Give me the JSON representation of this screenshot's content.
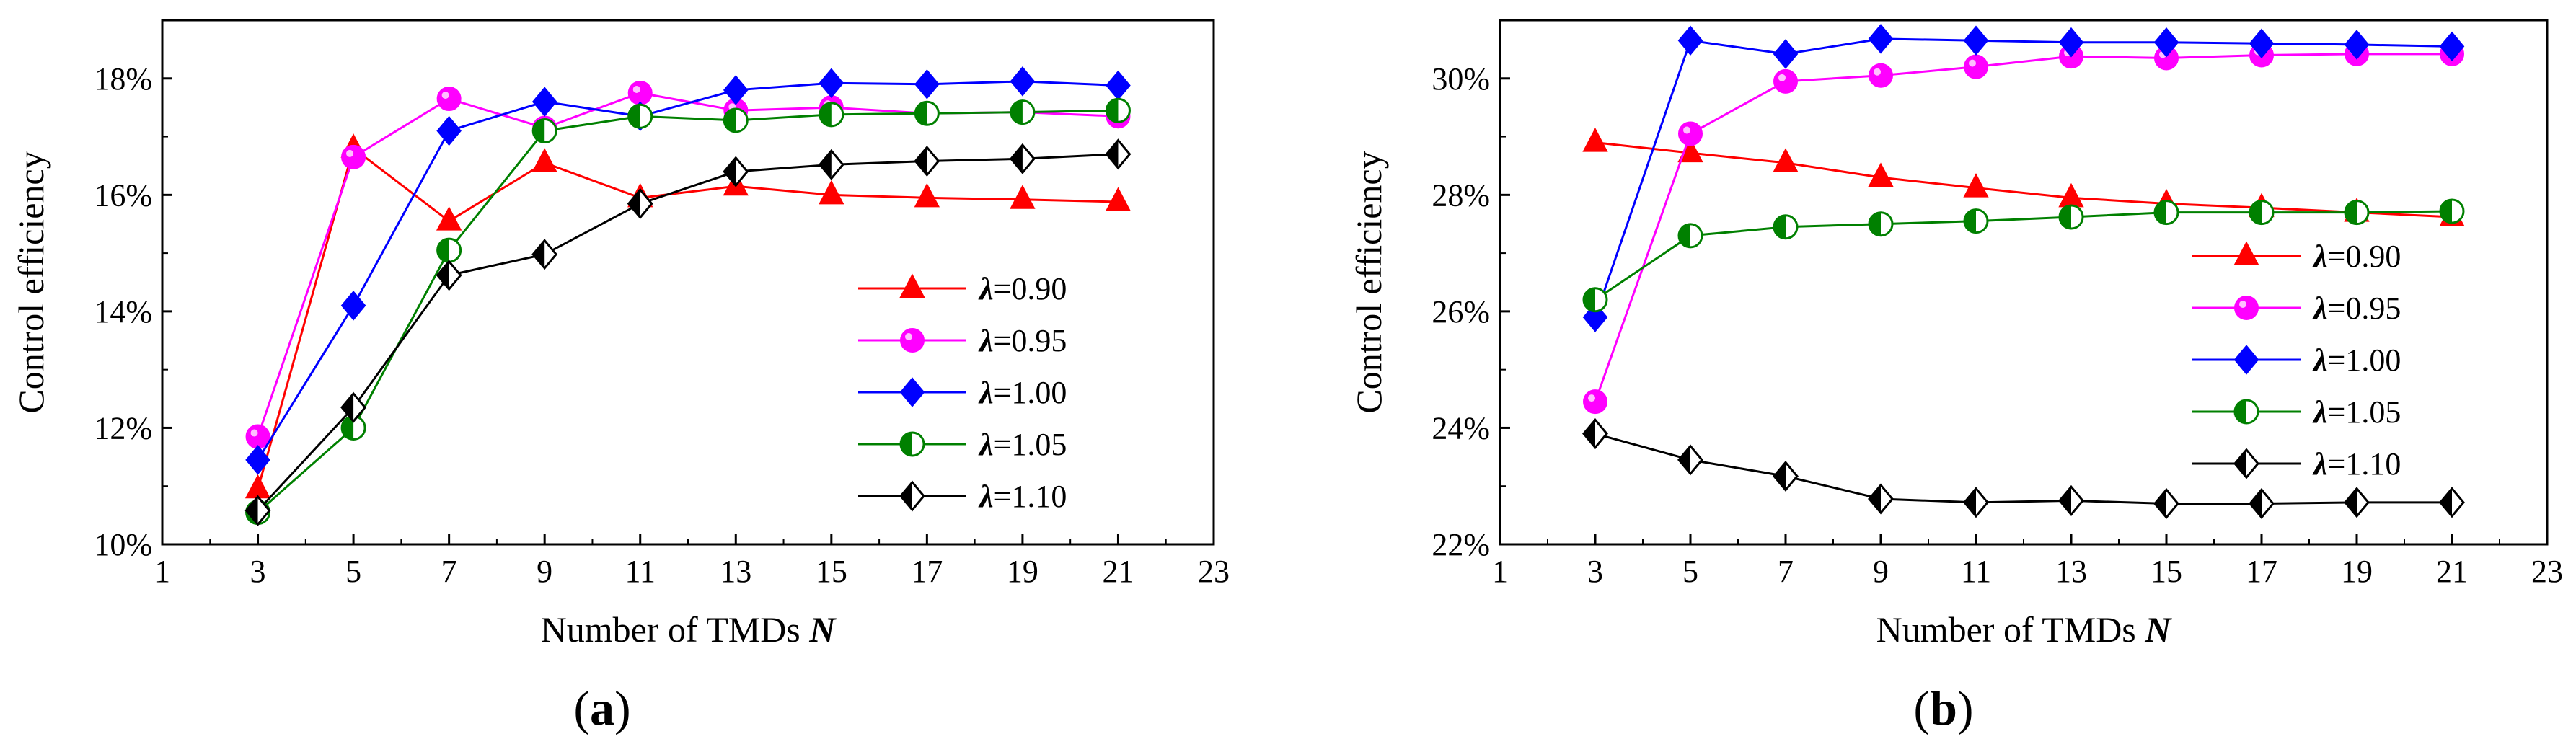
{
  "chart_data": [
    {
      "type": "line",
      "panel_label": "(a)",
      "panel_letter": "a",
      "xlabel": "Number of TMDs ",
      "xlabel_var": "N",
      "ylabel": "Control efficiency",
      "xlim": [
        1,
        23
      ],
      "ylim": [
        10,
        19
      ],
      "xticks": [
        1,
        3,
        5,
        7,
        9,
        11,
        13,
        15,
        17,
        19,
        21,
        23
      ],
      "yticks": [
        10,
        12,
        14,
        16,
        18
      ],
      "y_tick_suffix": "%",
      "legend_position": "lower-right",
      "x": [
        3,
        5,
        7,
        9,
        11,
        13,
        15,
        17,
        19,
        21
      ],
      "series": [
        {
          "name": "λ=0.90",
          "symbol": "λ",
          "value_text": "=0.90",
          "color": "#ff0000",
          "marker": "triangle",
          "values": [
            10.95,
            16.8,
            15.55,
            16.55,
            15.95,
            16.15,
            16.0,
            15.95,
            15.92,
            15.88
          ]
        },
        {
          "name": "λ=0.95",
          "symbol": "λ",
          "value_text": "=0.95",
          "color": "#ff00ff",
          "marker": "circle",
          "values": [
            11.85,
            16.65,
            17.65,
            17.15,
            17.75,
            17.45,
            17.5,
            17.4,
            17.42,
            17.35
          ]
        },
        {
          "name": "λ=1.00",
          "symbol": "λ",
          "value_text": "=1.00",
          "color": "#0000ff",
          "marker": "diamond",
          "values": [
            11.45,
            14.1,
            17.1,
            17.6,
            17.35,
            17.8,
            17.92,
            17.9,
            17.95,
            17.88
          ]
        },
        {
          "name": "λ=1.05",
          "symbol": "λ",
          "value_text": "=1.05",
          "color": "#008000",
          "marker": "half-circle",
          "values": [
            10.55,
            12.0,
            15.05,
            17.1,
            17.35,
            17.28,
            17.38,
            17.4,
            17.42,
            17.45
          ]
        },
        {
          "name": "λ=1.10",
          "symbol": "λ",
          "value_text": "=1.10",
          "color": "#000000",
          "marker": "half-diamond",
          "values": [
            10.58,
            12.35,
            14.62,
            14.98,
            15.85,
            16.4,
            16.52,
            16.58,
            16.62,
            16.7
          ]
        }
      ]
    },
    {
      "type": "line",
      "panel_label": "(b)",
      "panel_letter": "b",
      "xlabel": "Number of TMDs ",
      "xlabel_var": "N",
      "ylabel": "Control efficiency",
      "xlim": [
        1,
        23
      ],
      "ylim": [
        22,
        31
      ],
      "xticks": [
        1,
        3,
        5,
        7,
        9,
        11,
        13,
        15,
        17,
        19,
        21,
        23
      ],
      "yticks": [
        22,
        24,
        26,
        28,
        30
      ],
      "y_tick_suffix": "%",
      "legend_position": "center-right",
      "x": [
        3,
        5,
        7,
        9,
        11,
        13,
        15,
        17,
        19,
        21
      ],
      "series": [
        {
          "name": "λ=0.90",
          "symbol": "λ",
          "value_text": "=0.90",
          "color": "#ff0000",
          "marker": "triangle",
          "values": [
            28.9,
            28.72,
            28.55,
            28.3,
            28.12,
            27.95,
            27.85,
            27.78,
            27.7,
            27.62
          ]
        },
        {
          "name": "λ=0.95",
          "symbol": "λ",
          "value_text": "=0.95",
          "color": "#ff00ff",
          "marker": "circle",
          "values": [
            24.45,
            29.05,
            29.95,
            30.05,
            30.2,
            30.38,
            30.35,
            30.4,
            30.42,
            30.42
          ]
        },
        {
          "name": "λ=1.00",
          "symbol": "λ",
          "value_text": "=1.00",
          "color": "#0000ff",
          "marker": "diamond",
          "values": [
            25.9,
            30.65,
            30.42,
            30.68,
            30.65,
            30.62,
            30.62,
            30.6,
            30.58,
            30.55
          ]
        },
        {
          "name": "λ=1.05",
          "symbol": "λ",
          "value_text": "=1.05",
          "color": "#008000",
          "marker": "half-circle",
          "values": [
            26.2,
            27.3,
            27.45,
            27.5,
            27.55,
            27.62,
            27.7,
            27.7,
            27.7,
            27.72
          ]
        },
        {
          "name": "λ=1.10",
          "symbol": "λ",
          "value_text": "=1.10",
          "color": "#000000",
          "marker": "half-diamond",
          "values": [
            23.9,
            23.45,
            23.17,
            22.78,
            22.72,
            22.75,
            22.7,
            22.7,
            22.72,
            22.72
          ]
        }
      ]
    }
  ]
}
